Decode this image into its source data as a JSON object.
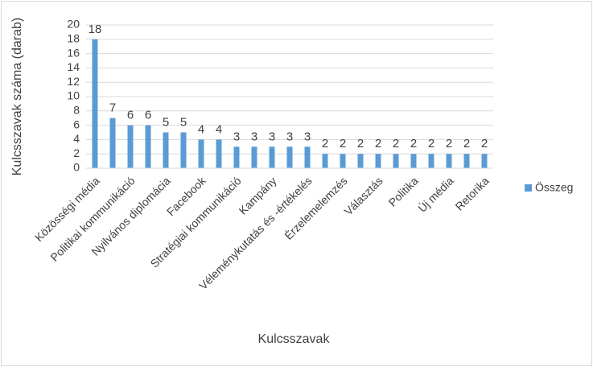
{
  "chart_data": {
    "type": "bar",
    "categories": [
      "Közösségi média",
      null,
      "Politikai kommunikáció",
      null,
      "Nyilvános diplomácia",
      null,
      "Facebook",
      null,
      "Stratégiai kommunikáció",
      null,
      "Kampány",
      null,
      "Véleménykutatás és -értékelés",
      null,
      "Érzelemelemzés",
      null,
      "Választás",
      null,
      "Politika",
      null,
      "Új média",
      null,
      "Retorika"
    ],
    "series": [
      {
        "name": "Összeg",
        "color": "#5b9bd5",
        "values": [
          18,
          7,
          6,
          6,
          5,
          5,
          4,
          4,
          3,
          3,
          3,
          3,
          3,
          2,
          2,
          2,
          2,
          2,
          2,
          2,
          2,
          2,
          2
        ]
      }
    ],
    "xlabel": "Kulcsszavak",
    "ylabel": "Kulcsszavak száma (darab)",
    "ylim": [
      0,
      20
    ],
    "yticks": [
      0,
      2,
      4,
      6,
      8,
      10,
      12,
      14,
      16,
      18,
      20
    ],
    "grid": true,
    "legend": "right"
  }
}
